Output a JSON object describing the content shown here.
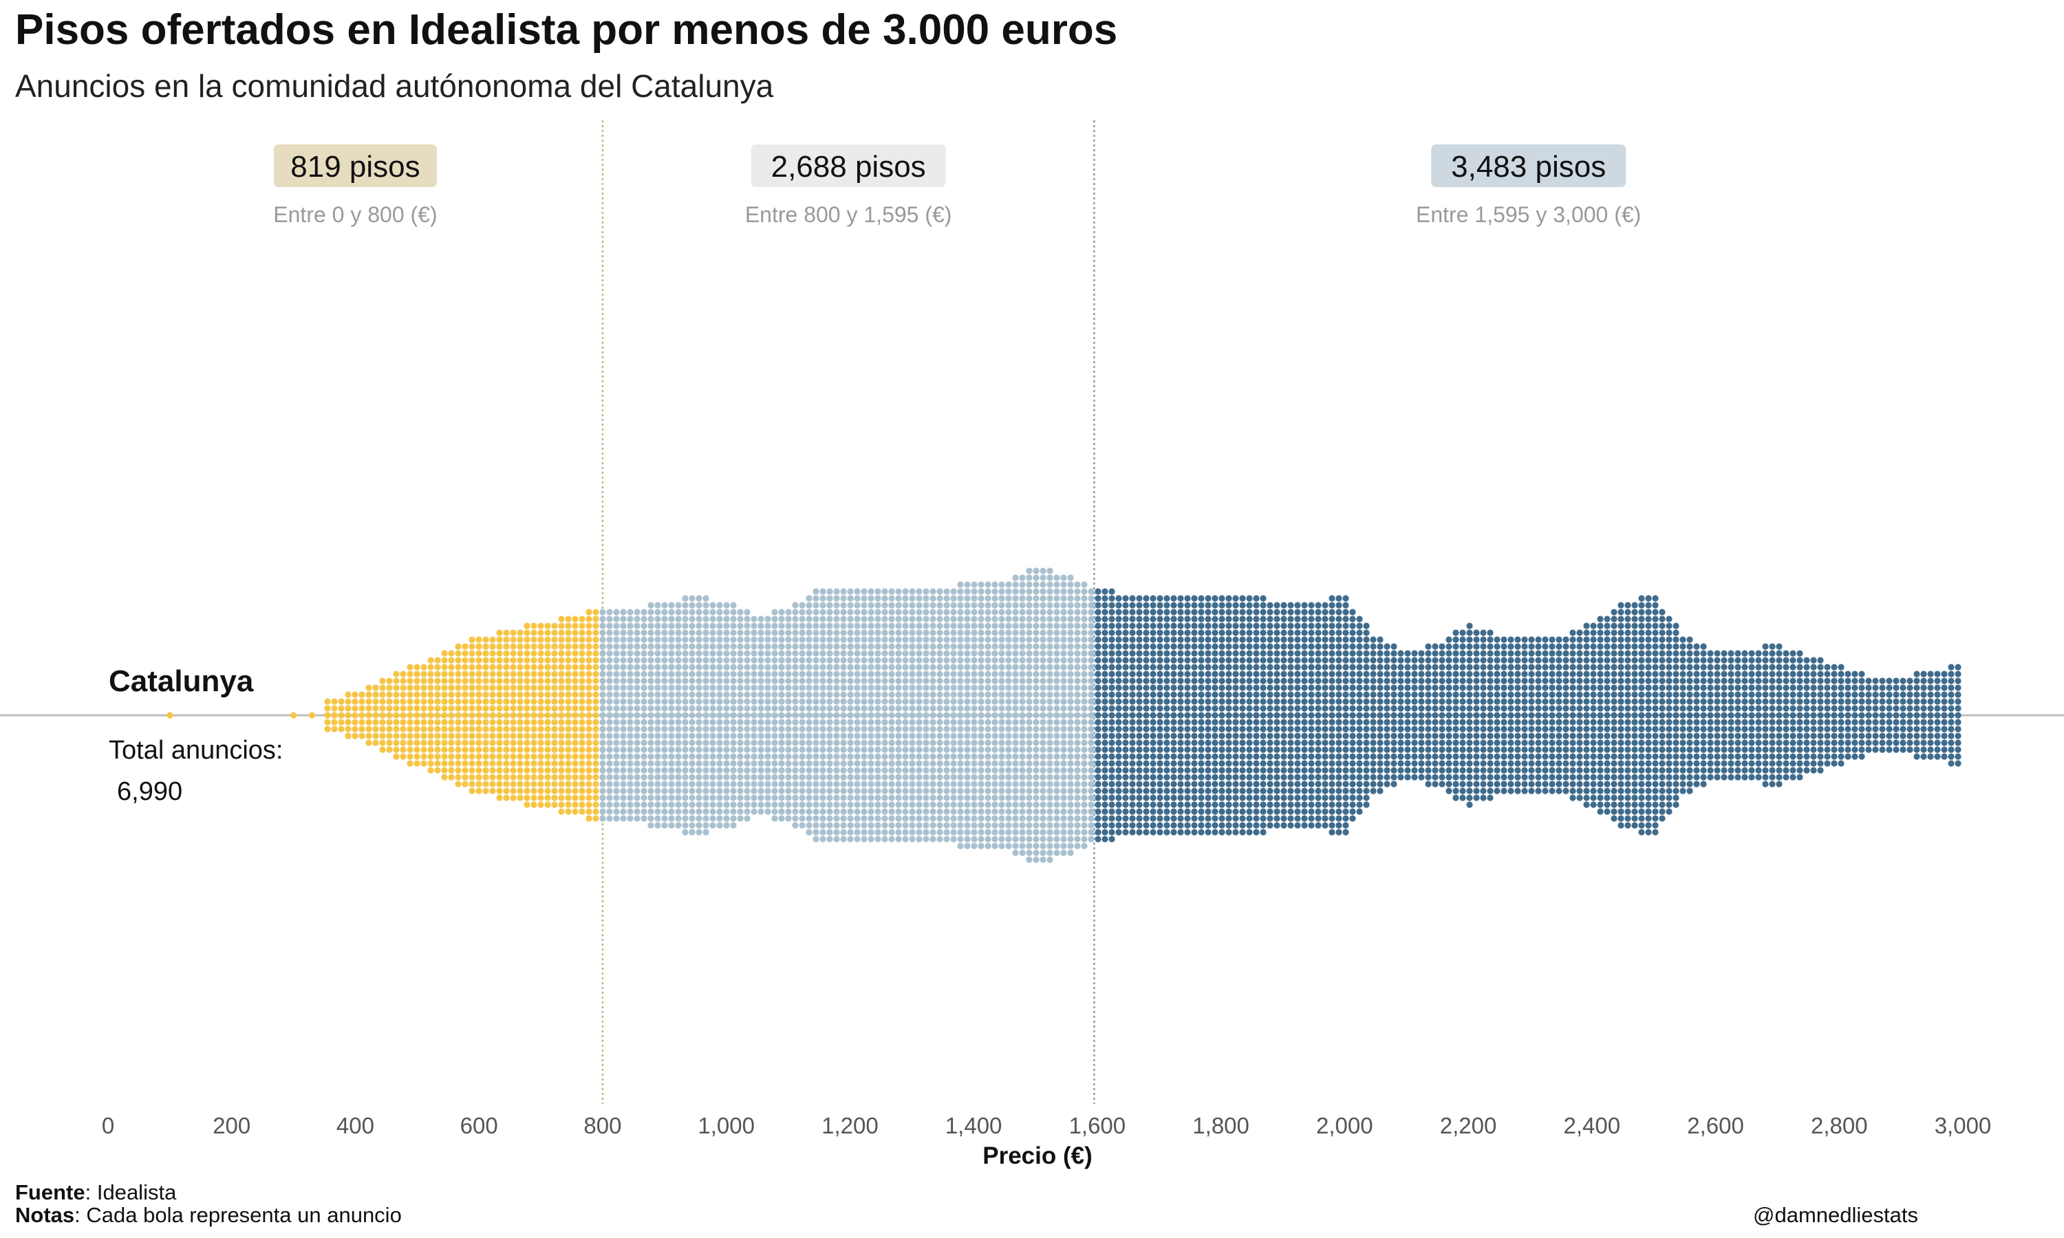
{
  "title": "Pisos ofertados en Idealista por menos de 3.000 euros",
  "subtitle": "Anuncios en la comunidad autónonoma del Catalunya",
  "region": {
    "name": "Catalunya",
    "total_label": "Total anuncios:",
    "total_value": "6,990"
  },
  "footer": {
    "source_label": "Fuente",
    "source_value": ": Idealista",
    "notes_label": "Notas",
    "notes_value": ": Cada bola representa un anuncio",
    "handle": "@damnedliestats"
  },
  "colors": {
    "low": "#f7c545",
    "mid": "#a9c0cf",
    "high": "#3f6b8c",
    "baseline": "#bdbdbd"
  },
  "chart_data": {
    "type": "beeswarm",
    "xlabel": "Precio (€)",
    "ylabel": "",
    "xlim": [
      0,
      3000
    ],
    "x_ticks": [
      "0",
      "200",
      "400",
      "600",
      "800",
      "1,000",
      "1,200",
      "1,400",
      "1,600",
      "1,800",
      "2,000",
      "2,200",
      "2,400",
      "2,600",
      "2,800",
      "3,000"
    ],
    "x_tick_values": [
      0,
      200,
      400,
      600,
      800,
      1000,
      1200,
      1400,
      1600,
      1800,
      2000,
      2200,
      2400,
      2600,
      2800,
      3000
    ],
    "dividers": [
      800,
      1595
    ],
    "groups": [
      {
        "count_label": "819 pisos",
        "range_label": "Entre 0 y 800 (€)",
        "from": 0,
        "to": 800,
        "count": 819,
        "color": "#f7c545",
        "box_color": "#e6dcbf"
      },
      {
        "count_label": "2,688 pisos",
        "range_label": "Entre 800 y 1,595 (€)",
        "from": 800,
        "to": 1595,
        "count": 2688,
        "color": "#a9c0cf",
        "box_color": "#ebebeb"
      },
      {
        "count_label": "3,483 pisos",
        "range_label": "Entre 1,595 y 3,000 (€)",
        "from": 1595,
        "to": 3000,
        "count": 3483,
        "color": "#3f6b8c",
        "box_color": "#cdd8e0"
      }
    ],
    "density_profile": {
      "price": [
        100,
        300,
        330,
        360,
        400,
        450,
        500,
        550,
        600,
        650,
        700,
        750,
        800,
        850,
        900,
        950,
        1000,
        1050,
        1100,
        1150,
        1200,
        1250,
        1300,
        1350,
        1400,
        1450,
        1500,
        1550,
        1600,
        1650,
        1700,
        1750,
        1800,
        1850,
        1900,
        1950,
        2000,
        2050,
        2100,
        2150,
        2200,
        2250,
        2300,
        2350,
        2400,
        2450,
        2500,
        2550,
        2600,
        2650,
        2700,
        2750,
        2800,
        2850,
        2900,
        2950,
        3000
      ],
      "half_height_dots": [
        1,
        1,
        1,
        2,
        3,
        5,
        7,
        9,
        11,
        12,
        13,
        14,
        15,
        15,
        16,
        17,
        16,
        14,
        15,
        18,
        18,
        18,
        18,
        18,
        19,
        19,
        21,
        20,
        18,
        17,
        17,
        17,
        17,
        17,
        16,
        16,
        17,
        11,
        9,
        10,
        13,
        11,
        11,
        11,
        13,
        16,
        17,
        11,
        9,
        9,
        10,
        8,
        7,
        5,
        5,
        6,
        7
      ]
    },
    "beeswarm_note": "Counts per group read from labels; swarm half-height (in dots) estimated from figure"
  }
}
